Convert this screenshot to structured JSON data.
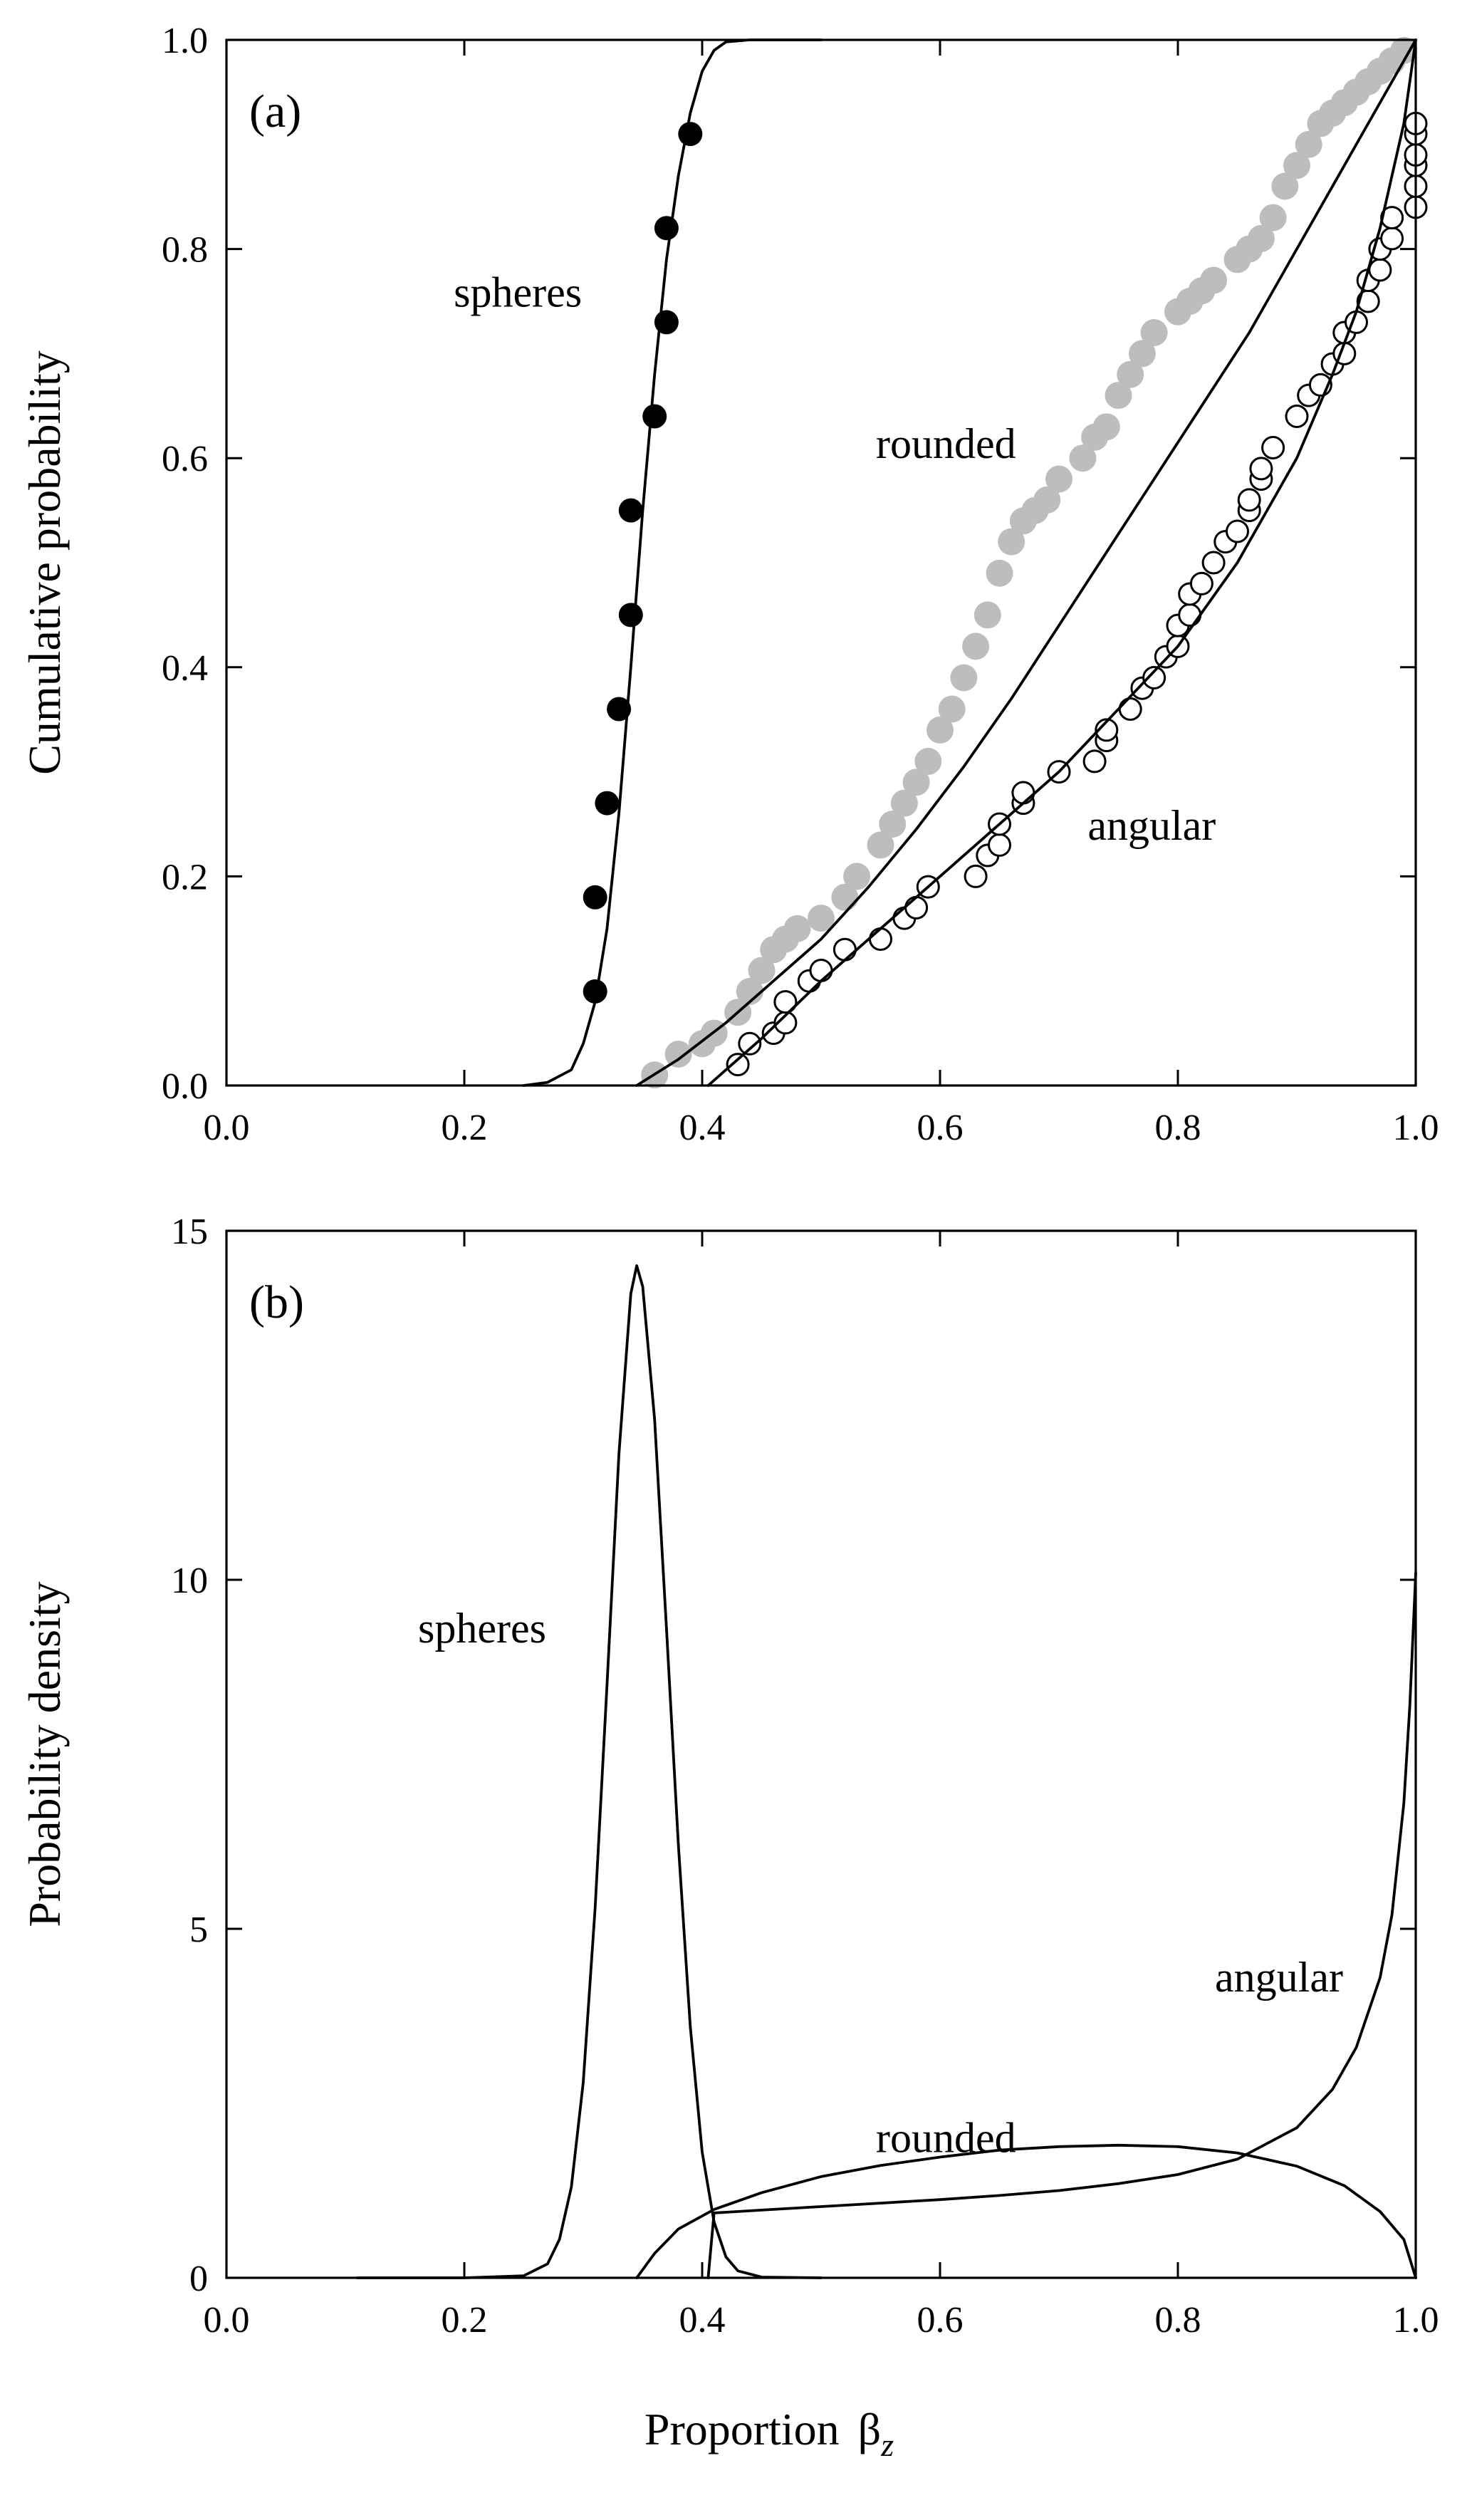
{
  "figure": {
    "xlabel_main": "Proportion",
    "xlabel_symbol": "β",
    "xlabel_subscript": "z"
  },
  "chart_data": [
    {
      "type": "scatter",
      "panel_label": "(a)",
      "ylabel": "Cumulative probability",
      "xlim": [
        0.0,
        1.0
      ],
      "ylim": [
        0.0,
        1.0
      ],
      "x_ticks": [
        "0.0",
        "0.2",
        "0.4",
        "0.6",
        "0.8",
        "1.0"
      ],
      "y_ticks": [
        "0.0",
        "0.2",
        "0.4",
        "0.6",
        "0.8",
        "1.0"
      ],
      "grid": false,
      "annotations": [
        {
          "text": "spheres",
          "x": 0.245,
          "y": 0.745
        },
        {
          "text": "rounded",
          "x": 0.605,
          "y": 0.6
        },
        {
          "text": "angular",
          "x": 0.778,
          "y": 0.235
        }
      ],
      "series": [
        {
          "marker": "filled-circle",
          "color": "#000000",
          "x": [
            0.31,
            0.31,
            0.32,
            0.33,
            0.34,
            0.34,
            0.36,
            0.37,
            0.37,
            0.39
          ],
          "y": [
            0.09,
            0.18,
            0.27,
            0.36,
            0.45,
            0.55,
            0.64,
            0.73,
            0.82,
            0.91
          ]
        },
        {
          "marker": "filled-circle",
          "color": "#bdbdbd",
          "x": [
            0.36,
            0.38,
            0.4,
            0.41,
            0.43,
            0.44,
            0.45,
            0.46,
            0.47,
            0.48,
            0.5,
            0.52,
            0.53,
            0.55,
            0.56,
            0.57,
            0.58,
            0.59,
            0.6,
            0.61,
            0.62,
            0.63,
            0.64,
            0.65,
            0.66,
            0.67,
            0.68,
            0.69,
            0.7,
            0.72,
            0.73,
            0.74,
            0.75,
            0.76,
            0.77,
            0.78,
            0.8,
            0.81,
            0.82,
            0.83,
            0.85,
            0.86,
            0.87,
            0.88,
            0.89,
            0.9,
            0.91,
            0.92,
            0.93,
            0.94,
            0.95,
            0.96,
            0.97,
            0.98,
            0.99
          ],
          "y": [
            0.01,
            0.03,
            0.04,
            0.05,
            0.07,
            0.09,
            0.11,
            0.13,
            0.14,
            0.15,
            0.16,
            0.18,
            0.2,
            0.23,
            0.25,
            0.27,
            0.29,
            0.31,
            0.34,
            0.36,
            0.39,
            0.42,
            0.45,
            0.49,
            0.52,
            0.54,
            0.55,
            0.56,
            0.58,
            0.6,
            0.62,
            0.63,
            0.66,
            0.68,
            0.7,
            0.72,
            0.74,
            0.75,
            0.76,
            0.77,
            0.79,
            0.8,
            0.81,
            0.83,
            0.86,
            0.88,
            0.9,
            0.92,
            0.93,
            0.94,
            0.95,
            0.96,
            0.97,
            0.98,
            0.99
          ]
        },
        {
          "marker": "open-circle",
          "color": "#000000",
          "x": [
            0.43,
            0.44,
            0.46,
            0.47,
            0.47,
            0.49,
            0.5,
            0.52,
            0.55,
            0.57,
            0.58,
            0.59,
            0.63,
            0.64,
            0.65,
            0.65,
            0.67,
            0.67,
            0.7,
            0.73,
            0.74,
            0.74,
            0.76,
            0.77,
            0.78,
            0.79,
            0.8,
            0.8,
            0.81,
            0.81,
            0.82,
            0.83,
            0.84,
            0.85,
            0.86,
            0.86,
            0.87,
            0.87,
            0.88,
            0.9,
            0.91,
            0.92,
            0.93,
            0.94,
            0.94,
            0.95,
            0.96,
            0.96,
            0.97,
            0.97,
            0.98,
            0.98,
            1.0,
            1.0,
            1.0,
            1.0,
            1.0,
            1.0
          ],
          "y": [
            0.02,
            0.04,
            0.05,
            0.06,
            0.08,
            0.1,
            0.11,
            0.13,
            0.14,
            0.16,
            0.17,
            0.19,
            0.2,
            0.22,
            0.23,
            0.25,
            0.27,
            0.28,
            0.3,
            0.31,
            0.33,
            0.34,
            0.36,
            0.38,
            0.39,
            0.41,
            0.42,
            0.44,
            0.45,
            0.47,
            0.48,
            0.5,
            0.52,
            0.53,
            0.55,
            0.56,
            0.58,
            0.59,
            0.61,
            0.64,
            0.66,
            0.67,
            0.69,
            0.7,
            0.72,
            0.73,
            0.75,
            0.77,
            0.78,
            0.8,
            0.81,
            0.83,
            0.84,
            0.86,
            0.88,
            0.89,
            0.91,
            0.92
          ]
        },
        {
          "marker": "none",
          "x": [
            0.25,
            0.27,
            0.29,
            0.3,
            0.31,
            0.32,
            0.33,
            0.34,
            0.35,
            0.36,
            0.37,
            0.38,
            0.39,
            0.4,
            0.41,
            0.42,
            0.44,
            0.5
          ],
          "y": [
            0.0,
            0.003,
            0.015,
            0.04,
            0.08,
            0.15,
            0.26,
            0.4,
            0.55,
            0.68,
            0.79,
            0.87,
            0.93,
            0.97,
            0.99,
            0.998,
            1.0,
            1.0
          ]
        },
        {
          "marker": "none",
          "x": [
            0.345,
            0.38,
            0.42,
            0.46,
            0.5,
            0.54,
            0.58,
            0.62,
            0.66,
            0.7,
            0.74,
            0.78,
            0.82,
            0.86,
            0.9,
            0.94,
            0.97,
            1.0
          ],
          "y": [
            0.0,
            0.025,
            0.06,
            0.1,
            0.14,
            0.19,
            0.245,
            0.305,
            0.37,
            0.44,
            0.51,
            0.58,
            0.65,
            0.72,
            0.8,
            0.88,
            0.94,
            1.0
          ]
        },
        {
          "marker": "none",
          "x": [
            0.405,
            0.45,
            0.5,
            0.55,
            0.6,
            0.65,
            0.7,
            0.75,
            0.8,
            0.85,
            0.9,
            0.93,
            0.95,
            0.97,
            0.98,
            0.99,
            1.0
          ],
          "y": [
            0.0,
            0.045,
            0.1,
            0.15,
            0.2,
            0.25,
            0.3,
            0.36,
            0.42,
            0.5,
            0.6,
            0.68,
            0.74,
            0.82,
            0.87,
            0.92,
            1.0
          ]
        }
      ]
    },
    {
      "type": "line",
      "panel_label": "(b)",
      "ylabel": "Probability density",
      "xlim": [
        0.0,
        1.0
      ],
      "ylim": [
        0,
        15
      ],
      "x_ticks": [
        "0.0",
        "0.2",
        "0.4",
        "0.6",
        "0.8",
        "1.0"
      ],
      "y_ticks": [
        "0",
        "5",
        "10",
        "15"
      ],
      "grid": false,
      "annotations": [
        {
          "text": "spheres",
          "x": 0.215,
          "y": 9.1
        },
        {
          "text": "rounded",
          "x": 0.605,
          "y": 1.8
        },
        {
          "text": "angular",
          "x": 0.885,
          "y": 4.1
        }
      ],
      "series": [
        {
          "x": [
            0.11,
            0.2,
            0.25,
            0.27,
            0.28,
            0.29,
            0.3,
            0.31,
            0.32,
            0.33,
            0.34,
            0.345,
            0.35,
            0.36,
            0.37,
            0.38,
            0.39,
            0.4,
            0.41,
            0.42,
            0.43,
            0.45,
            0.5
          ],
          "y": [
            0,
            0,
            0.03,
            0.2,
            0.55,
            1.3,
            2.8,
            5.3,
            8.5,
            11.8,
            14.1,
            14.5,
            14.2,
            12.3,
            9.3,
            6.2,
            3.6,
            1.8,
            0.8,
            0.3,
            0.1,
            0.01,
            0
          ]
        },
        {
          "x": [
            0.345,
            0.36,
            0.38,
            0.41,
            0.45,
            0.5,
            0.55,
            0.6,
            0.65,
            0.7,
            0.75,
            0.8,
            0.85,
            0.9,
            0.94,
            0.97,
            0.99,
            1.0
          ],
          "y": [
            0,
            0.35,
            0.7,
            0.98,
            1.22,
            1.45,
            1.61,
            1.73,
            1.83,
            1.88,
            1.9,
            1.88,
            1.79,
            1.6,
            1.32,
            0.95,
            0.55,
            0
          ]
        },
        {
          "x": [
            0.405,
            0.41,
            0.45,
            0.5,
            0.55,
            0.6,
            0.65,
            0.7,
            0.75,
            0.8,
            0.85,
            0.9,
            0.93,
            0.95,
            0.97,
            0.98,
            0.99,
            0.995,
            1.0
          ],
          "y": [
            0,
            0.93,
            0.97,
            1.02,
            1.07,
            1.12,
            1.18,
            1.25,
            1.35,
            1.48,
            1.7,
            2.15,
            2.7,
            3.3,
            4.3,
            5.2,
            6.8,
            8.2,
            10.1
          ]
        }
      ]
    }
  ]
}
